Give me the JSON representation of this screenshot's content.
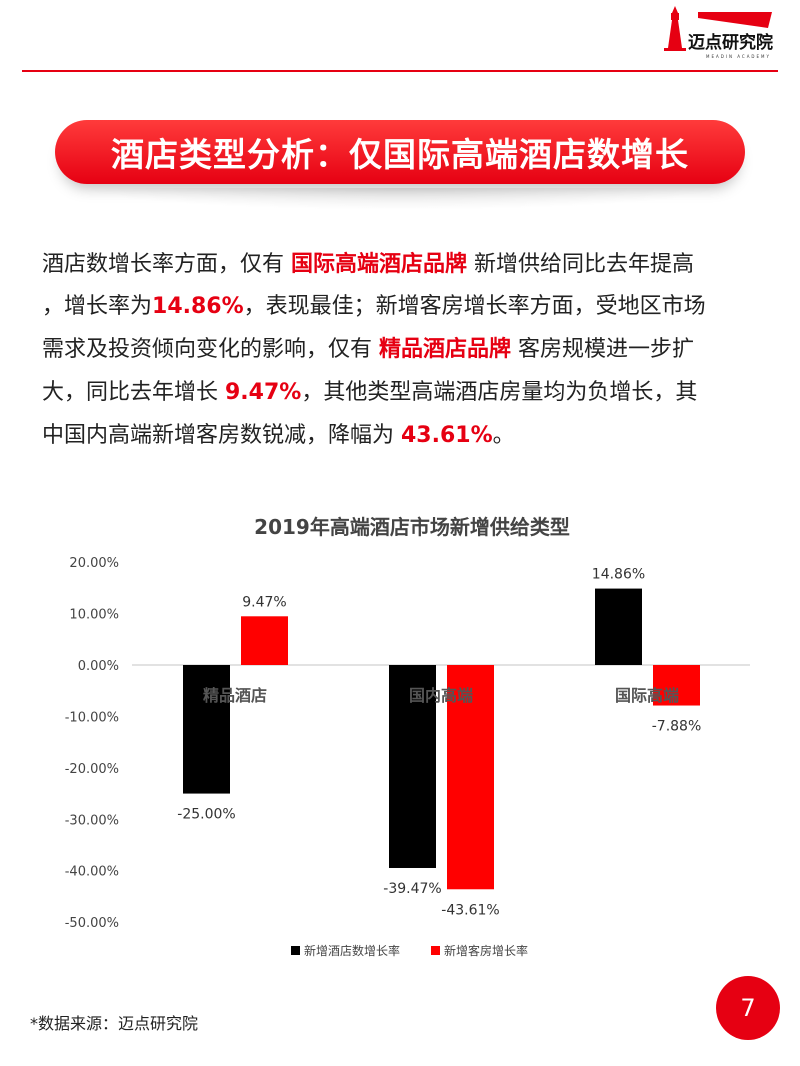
{
  "header": {
    "logo_text": "迈点研究院",
    "logo_subtext": "MEADIN ACADEMY"
  },
  "banner": {
    "title": "酒店类型分析：仅国际高端酒店数增长"
  },
  "body": {
    "lines": [
      [
        {
          "t": "酒店数增长率方面，仅有 ",
          "h": false
        },
        {
          "t": "国际高端酒店品牌",
          "h": true
        },
        {
          "t": " 新增供给同比去年提高",
          "h": false
        }
      ],
      [
        {
          "t": "，增长率为",
          "h": false
        },
        {
          "t": "14.86%",
          "h": true
        },
        {
          "t": "，表现最佳；新增客房增长率方面，受地区市场",
          "h": false
        }
      ],
      [
        {
          "t": "需求及投资倾向变化的影响，仅有 ",
          "h": false
        },
        {
          "t": "精品酒店品牌",
          "h": true
        },
        {
          "t": " 客房规模进一步扩",
          "h": false
        }
      ],
      [
        {
          "t": "大，同比去年增长 ",
          "h": false
        },
        {
          "t": "9.47%",
          "h": true
        },
        {
          "t": "，其他类型高端酒店房量均为负增长，其",
          "h": false
        }
      ],
      [
        {
          "t": "中国内高端新增客房数锐减，降幅为 ",
          "h": false
        },
        {
          "t": "43.61%",
          "h": true
        },
        {
          "t": "。",
          "h": false
        }
      ]
    ]
  },
  "chart_data": {
    "type": "bar",
    "title": "2019年高端酒店市场新增供给类型",
    "categories": [
      "精品酒店",
      "国内高端",
      "国际高端"
    ],
    "series": [
      {
        "name": "新增酒店数增长率",
        "values": [
          -25.0,
          -39.47,
          14.86
        ],
        "color": "#000000"
      },
      {
        "name": "新增客房增长率",
        "values": [
          9.47,
          -43.61,
          -7.88
        ],
        "color": "#ff0000"
      }
    ],
    "ylim": [
      -50,
      20
    ],
    "yticks": [
      "20.00%",
      "10.00%",
      "0.00%",
      "-10.00%",
      "-20.00%",
      "-30.00%",
      "-40.00%",
      "-50.00%"
    ],
    "data_labels": [
      [
        "-25.00%",
        "-39.47%",
        "14.86%"
      ],
      [
        "9.47%",
        "-43.61%",
        "-7.88%"
      ]
    ],
    "legend": "bottom",
    "grid": false
  },
  "footer": {
    "source": "*数据来源：迈点研究院",
    "page_number": "7"
  },
  "colors": {
    "accent": "#e60012"
  }
}
